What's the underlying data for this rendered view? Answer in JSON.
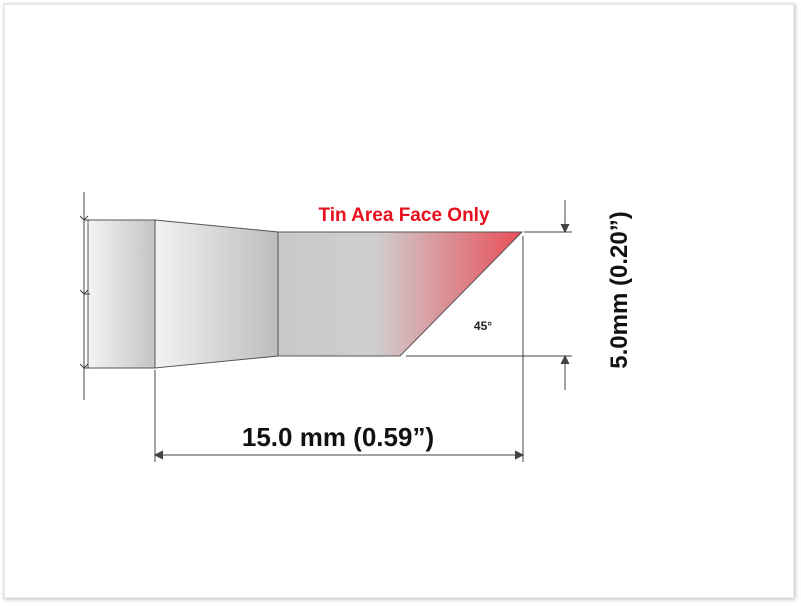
{
  "label": "Tin Area Face Only",
  "angle": "45°",
  "length": "15.0 mm (0.59”)",
  "height": "5.0mm (0.20”)"
}
